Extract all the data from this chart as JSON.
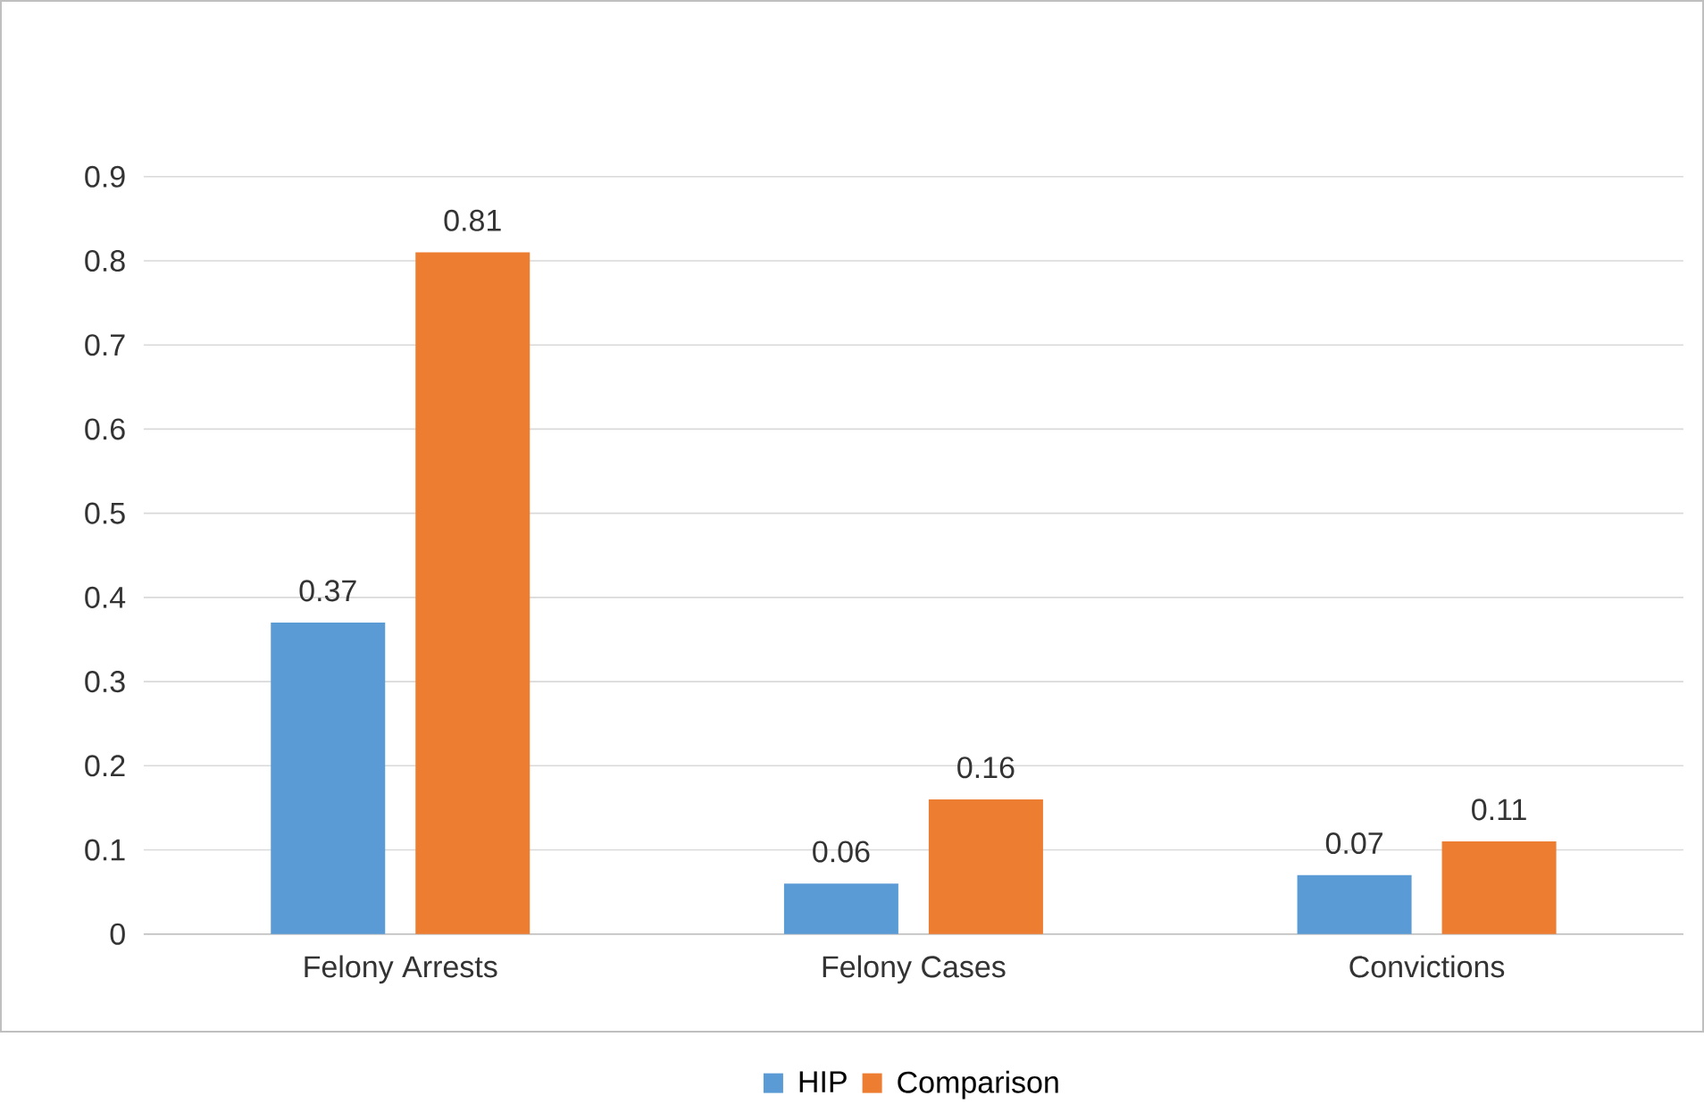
{
  "chart_data": {
    "type": "bar",
    "categories": [
      "Felony Arrests",
      "Felony Cases",
      "Convictions"
    ],
    "series": [
      {
        "name": "HIP",
        "color": "#5b9bd5",
        "values": [
          0.37,
          0.06,
          0.07
        ]
      },
      {
        "name": "Comparison",
        "color": "#ed7d31",
        "values": [
          0.81,
          0.16,
          0.11
        ]
      }
    ],
    "ylim": [
      0,
      0.9
    ],
    "yticks": [
      0,
      0.1,
      0.2,
      0.3,
      0.4,
      0.5,
      0.6,
      0.7,
      0.8,
      0.9
    ],
    "grid": "y",
    "legend": "bottom",
    "data_labels": true
  }
}
